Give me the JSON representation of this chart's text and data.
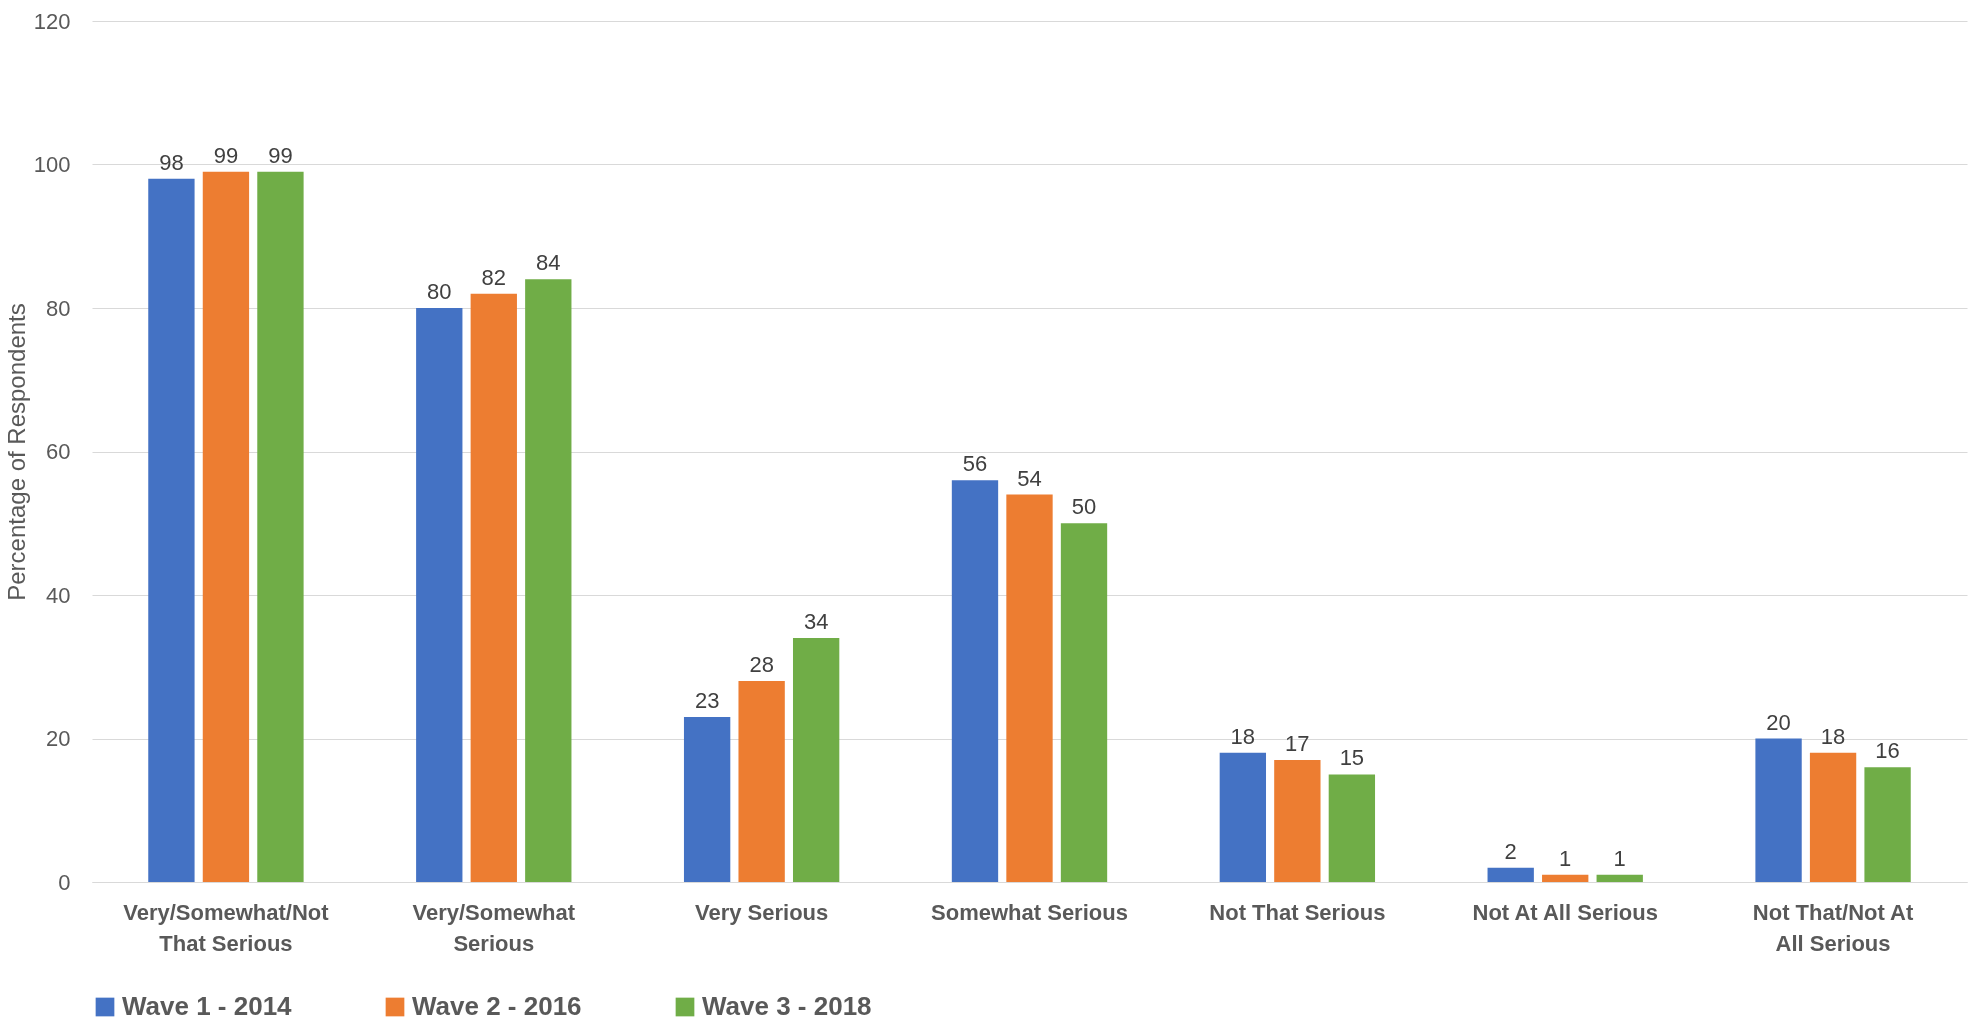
{
  "chart_data": {
    "type": "bar",
    "ylabel": "Percentage of Respondents",
    "categories": [
      "Very/Somewhat/Not That Serious",
      "Very/Somewhat Serious",
      "Very Serious",
      "Somewhat Serious",
      "Not That Serious",
      "Not At All Serious",
      "Not That/Not At All Serious"
    ],
    "series": [
      {
        "name": "Wave 1 - 2014",
        "color": "#4472c4",
        "values": [
          98,
          80,
          23,
          56,
          18,
          2,
          20
        ]
      },
      {
        "name": "Wave 2 - 2016",
        "color": "#ed7d31",
        "values": [
          99,
          82,
          28,
          54,
          17,
          1,
          18
        ]
      },
      {
        "name": "Wave 3 - 2018",
        "color": "#70ad47",
        "values": [
          99,
          84,
          34,
          50,
          15,
          1,
          16
        ]
      }
    ],
    "ylim": [
      0,
      120
    ],
    "yticks": [
      0,
      20,
      40,
      60,
      80,
      100,
      120
    ],
    "grid": "y",
    "legend": "bottom",
    "data_labels": true
  }
}
